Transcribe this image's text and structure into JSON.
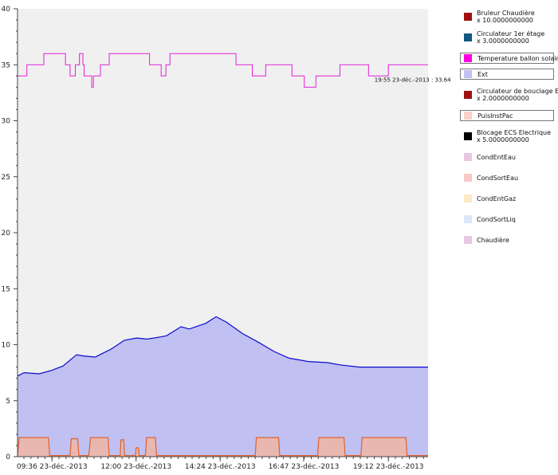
{
  "chart_data": {
    "type": "area",
    "ylim": [
      0,
      40
    ],
    "yticks": [
      "0",
      "5",
      "10",
      "15",
      "20",
      "25",
      "30",
      "35",
      "40"
    ],
    "xlim": [
      "08:37",
      "20:20"
    ],
    "xticks": [
      {
        "x": "09:36",
        "label": "09:36 23-déc.-2013"
      },
      {
        "x": "12:00",
        "label": "12:00 23-déc.-2013"
      },
      {
        "x": "14:24",
        "label": "14:24 23-déc.-2013"
      },
      {
        "x": "16:47",
        "label": "16:47 23-déc.-2013"
      },
      {
        "x": "19:12",
        "label": "19:12 23-déc.-2013"
      }
    ],
    "grid": false,
    "legend_position": "right",
    "series": [
      {
        "name": "Temperature ballon solaire",
        "kind": "step",
        "color": "#e020d8",
        "points": [
          [
            "08:37",
            34
          ],
          [
            "08:53",
            35
          ],
          [
            "09:22",
            36
          ],
          [
            "09:59",
            35
          ],
          [
            "10:07",
            34
          ],
          [
            "10:16",
            35
          ],
          [
            "10:23",
            36
          ],
          [
            "10:29",
            35
          ],
          [
            "10:31",
            34
          ],
          [
            "10:39",
            34
          ],
          [
            "10:44",
            33
          ],
          [
            "10:47",
            34
          ],
          [
            "10:59",
            35
          ],
          [
            "11:14",
            36
          ],
          [
            "12:23",
            35
          ],
          [
            "12:43",
            34
          ],
          [
            "12:51",
            35
          ],
          [
            "12:58",
            36
          ],
          [
            "14:51",
            35
          ],
          [
            "15:19",
            34
          ],
          [
            "15:42",
            35
          ],
          [
            "16:27",
            34
          ],
          [
            "16:48",
            33
          ],
          [
            "17:08",
            34
          ],
          [
            "17:49",
            35
          ],
          [
            "18:38",
            34
          ],
          [
            "19:12",
            35
          ],
          [
            "20:20",
            35
          ]
        ]
      },
      {
        "name": "Ext",
        "kind": "area",
        "color": "#0a0ad0",
        "fill": "#c0c0f2",
        "points": [
          [
            "08:37",
            7.2
          ],
          [
            "08:48",
            7.5
          ],
          [
            "09:14",
            7.4
          ],
          [
            "09:35",
            7.7
          ],
          [
            "09:55",
            8.1
          ],
          [
            "10:18",
            9.1
          ],
          [
            "10:30",
            9.0
          ],
          [
            "10:50",
            8.9
          ],
          [
            "11:17",
            9.6
          ],
          [
            "11:40",
            10.4
          ],
          [
            "12:01",
            10.6
          ],
          [
            "12:19",
            10.5
          ],
          [
            "12:42",
            10.7
          ],
          [
            "12:52",
            10.8
          ],
          [
            "13:17",
            11.6
          ],
          [
            "13:31",
            11.4
          ],
          [
            "13:59",
            11.9
          ],
          [
            "14:17",
            12.5
          ],
          [
            "14:35",
            12.0
          ],
          [
            "15:02",
            11.0
          ],
          [
            "15:30",
            10.2
          ],
          [
            "15:56",
            9.4
          ],
          [
            "16:22",
            8.8
          ],
          [
            "16:55",
            8.5
          ],
          [
            "17:28",
            8.4
          ],
          [
            "17:49",
            8.2
          ],
          [
            "18:23",
            8.0
          ],
          [
            "19:14",
            8.0
          ],
          [
            "20:20",
            8.0
          ]
        ]
      },
      {
        "name": "PuisInstPac",
        "kind": "area",
        "color": "#e06030",
        "fill": "#e8b8b0",
        "points": [
          [
            "08:37",
            0.1
          ],
          [
            "08:40",
            1.7
          ],
          [
            "09:30",
            1.7
          ],
          [
            "09:32",
            0.1
          ],
          [
            "10:07",
            0.1
          ],
          [
            "10:09",
            1.6
          ],
          [
            "10:20",
            1.6
          ],
          [
            "10:22",
            0.1
          ],
          [
            "10:39",
            0.1
          ],
          [
            "10:42",
            1.7
          ],
          [
            "11:12",
            1.7
          ],
          [
            "11:14",
            0.1
          ],
          [
            "11:33",
            0.1
          ],
          [
            "11:34",
            1.5
          ],
          [
            "11:39",
            1.5
          ],
          [
            "11:40",
            0.1
          ],
          [
            "11:59",
            0.1
          ],
          [
            "12:00",
            0.8
          ],
          [
            "12:04",
            0.8
          ],
          [
            "12:05",
            0.1
          ],
          [
            "12:16",
            0.1
          ],
          [
            "12:18",
            1.7
          ],
          [
            "12:33",
            1.7
          ],
          [
            "12:35",
            0.1
          ],
          [
            "15:24",
            0.1
          ],
          [
            "15:26",
            1.7
          ],
          [
            "16:04",
            1.7
          ],
          [
            "16:06",
            0.1
          ],
          [
            "17:11",
            0.1
          ],
          [
            "17:13",
            1.7
          ],
          [
            "17:56",
            1.7
          ],
          [
            "17:58",
            0.1
          ],
          [
            "18:25",
            0.1
          ],
          [
            "18:27",
            1.7
          ],
          [
            "19:42",
            1.7
          ],
          [
            "19:44",
            0.1
          ],
          [
            "20:20",
            0.1
          ]
        ]
      }
    ],
    "annotation": {
      "text": "19:55 23-déc.-2013 : 33.64",
      "x": "19:55",
      "y": 33.64
    },
    "legend": [
      {
        "label": "Bruleur Chaudière",
        "sub": "x 10.0000000000",
        "color": "#a01010",
        "selected": false
      },
      {
        "label": "Circulateur 1er étage",
        "sub": "x 3.0000000000",
        "color": "#105880",
        "selected": false
      },
      {
        "label": "Temperature ballon solaire",
        "sub": "",
        "color": "#ff00e0",
        "selected": true
      },
      {
        "label": "Ext",
        "sub": "",
        "color": "#c0c0f2",
        "selected": true
      },
      {
        "label": "Circulateur de bouclage ECS",
        "sub": "x 2.0000000000",
        "color": "#a01010",
        "selected": false
      },
      {
        "label": "PuisInstPac",
        "sub": "",
        "color": "#f8d0c8",
        "selected": true
      },
      {
        "label": "Blocage ECS Electrique",
        "sub": "x 5.0000000000",
        "color": "#000000",
        "selected": false
      },
      {
        "label": "CondEntEau",
        "sub": "",
        "color": "#e8c8e0",
        "selected": false
      },
      {
        "label": "CondSortEau",
        "sub": "",
        "color": "#f8c8c8",
        "selected": false
      },
      {
        "label": "CondEntGaz",
        "sub": "",
        "color": "#fde8c8",
        "selected": false
      },
      {
        "label": "CondSortLiq",
        "sub": "",
        "color": "#d8e8f8",
        "selected": false
      },
      {
        "label": "Chaudière",
        "sub": "",
        "color": "#e8c8e0",
        "selected": false
      }
    ]
  }
}
